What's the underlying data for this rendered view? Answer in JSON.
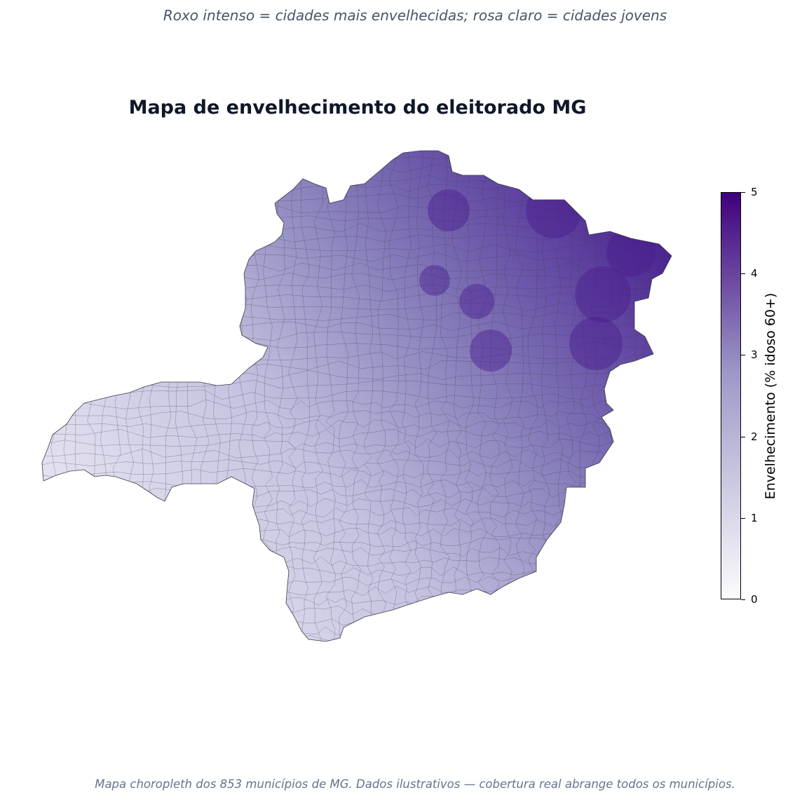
{
  "subtitle": "Roxo intenso = cidades mais envelhecidas; rosa claro = cidades jovens",
  "title": "Mapa de envelhecimento do eleitorado MG",
  "footer": "Mapa choropleth dos 853 municípios de MG. Dados ilustrativos — cobertura real abrange todos os municípios.",
  "colorbar": {
    "label": "Envelhecimento (% idoso 60+)",
    "min": 0,
    "max": 5,
    "ticks": [
      "0",
      "1",
      "2",
      "3",
      "4",
      "5"
    ],
    "colormap": "Purples",
    "color_low": "#fcfbfd",
    "color_mid": "#9e9ac8",
    "color_high": "#3f007d"
  },
  "map": {
    "region": "Minas Gerais",
    "municipality_count": 853,
    "colors": {
      "outline": "#3b3b4a",
      "background": "#ffffff"
    }
  }
}
